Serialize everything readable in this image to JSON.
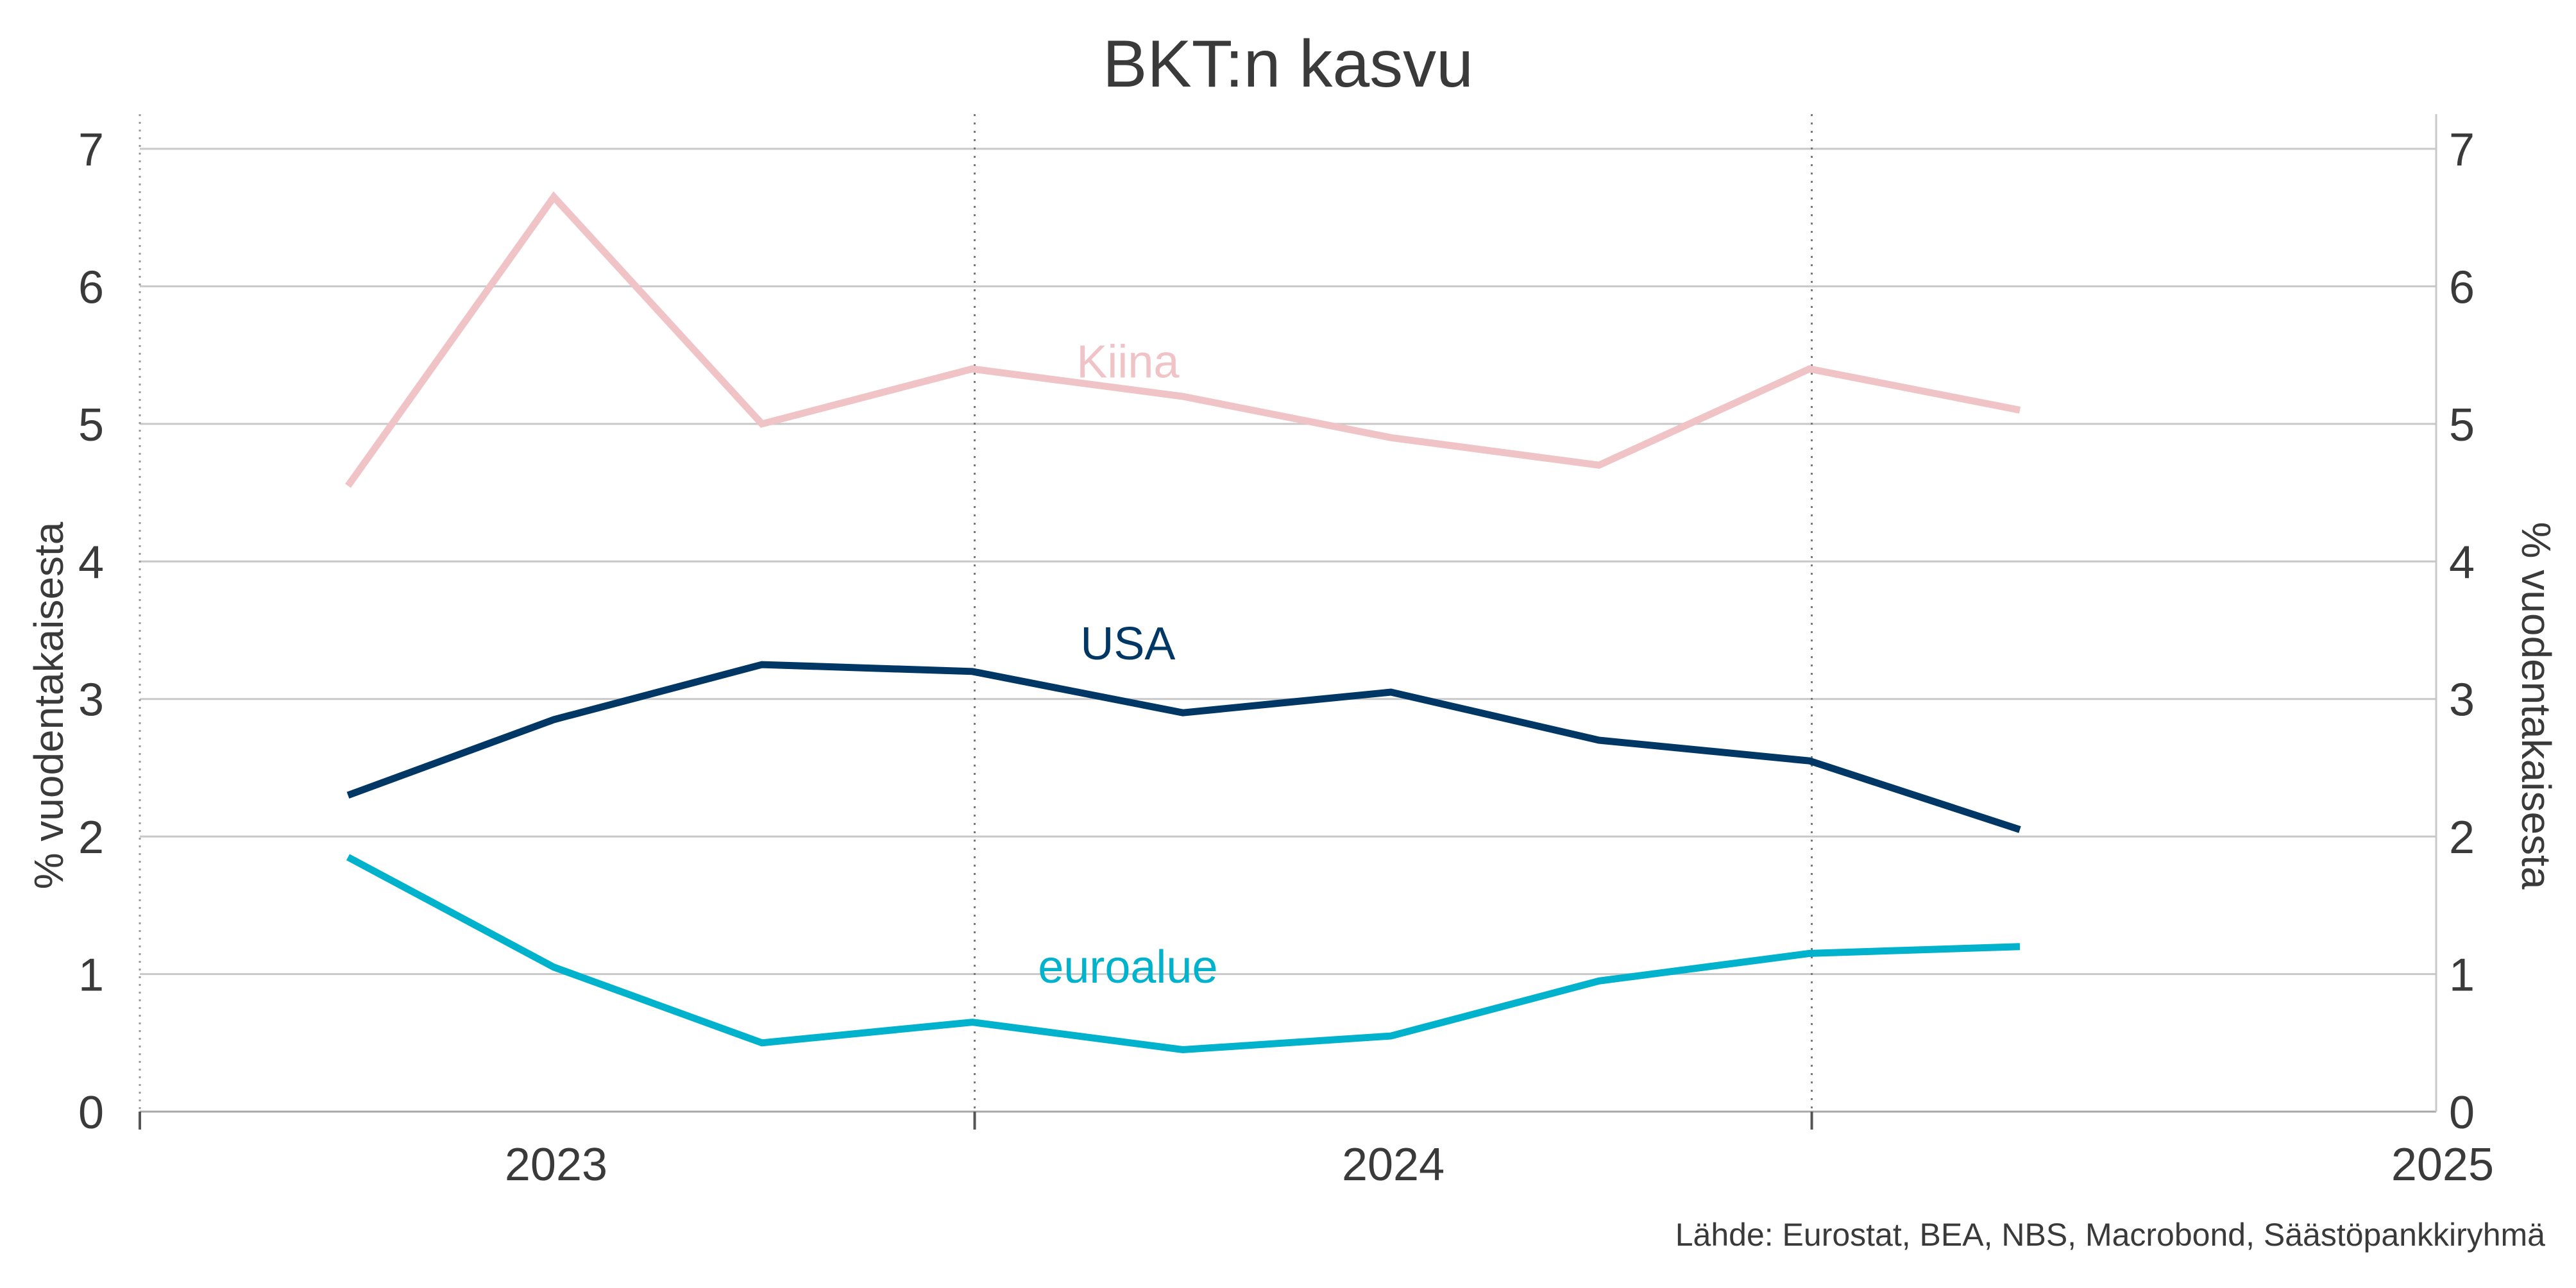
{
  "chart_data": {
    "type": "line",
    "title": "BKT:n kasvu",
    "ylabel_left": "% vuodentakaisesta",
    "ylabel_right": "% vuodentakaisesta",
    "ylim": [
      0,
      7
    ],
    "yticks": [
      0,
      1,
      2,
      3,
      4,
      5,
      6,
      7
    ],
    "x_axis": {
      "range": [
        "2022-10-01",
        "2025-07-01"
      ],
      "year_labels": [
        "2023",
        "2024",
        "2025"
      ],
      "year_label_dates": [
        "2023-04-01",
        "2024-04-01",
        "2025-07-01"
      ],
      "tick_dates": [
        "2022-10-01",
        "2023-10-01",
        "2024-10-01"
      ]
    },
    "x": [
      "2023-01",
      "2023-04",
      "2023-07",
      "2023-10",
      "2024-01",
      "2024-04",
      "2024-07",
      "2024-10",
      "2025-01"
    ],
    "x_dates": [
      "2022-12-31",
      "2023-03-31",
      "2023-06-30",
      "2023-09-30",
      "2023-12-31",
      "2024-03-31",
      "2024-06-30",
      "2024-09-30",
      "2024-12-31"
    ],
    "series": [
      {
        "name": "Kiina",
        "color": "#f0c3c7",
        "values": [
          4.55,
          6.65,
          5.0,
          5.4,
          5.2,
          4.9,
          4.7,
          5.4,
          5.1
        ]
      },
      {
        "name": "USA",
        "color": "#003764",
        "values": [
          2.3,
          2.85,
          3.25,
          3.2,
          2.9,
          3.05,
          2.7,
          2.55,
          2.05
        ]
      },
      {
        "name": "euroalue",
        "color": "#00b2cc",
        "values": [
          1.85,
          1.05,
          0.5,
          0.65,
          0.45,
          0.55,
          0.95,
          1.15,
          1.2
        ]
      }
    ],
    "grid": true,
    "legend": "inline labels",
    "source": "Lähde: Eurostat, BEA, NBS, Macrobond, Säästöpankkiryhmä"
  }
}
